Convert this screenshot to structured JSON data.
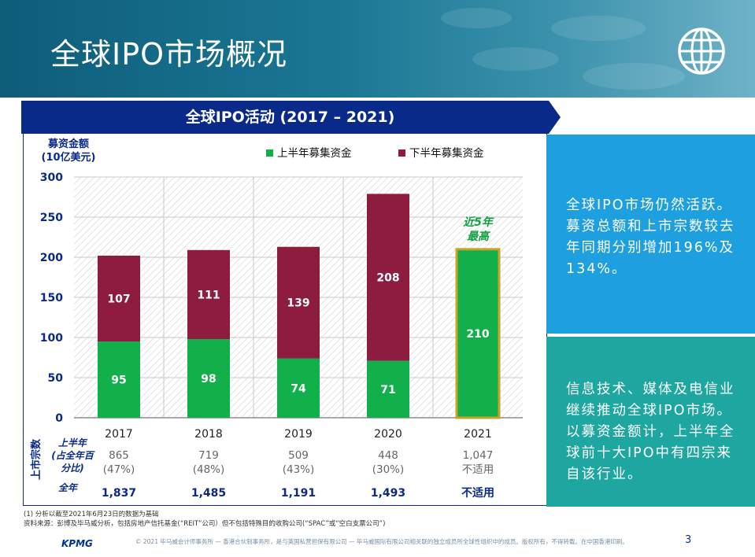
{
  "header": {
    "title": "全球IPO市场概况",
    "icon": "globe-icon"
  },
  "chart_data": {
    "type": "bar",
    "title": "全球IPO活动 (2017 – 2021)",
    "ylabel": [
      "募资金额",
      "(10亿美元)"
    ],
    "ylim": [
      0,
      300
    ],
    "yticks": [
      0,
      50,
      100,
      150,
      200,
      250,
      300
    ],
    "grid": true,
    "legend_position": "top-right",
    "categories": [
      "2017",
      "2018",
      "2019",
      "2020",
      "2021"
    ],
    "series": [
      {
        "name": "上半年募集资金",
        "color": "#12b04a",
        "values": [
          95,
          98,
          74,
          71,
          210
        ]
      },
      {
        "name": "下半年募集资金",
        "color": "#8e1c3e",
        "values": [
          107,
          111,
          139,
          208,
          null
        ]
      }
    ],
    "annotation": {
      "text": [
        "近5年",
        "最高"
      ],
      "category": "2021"
    }
  },
  "deals_table": {
    "side_label": "上市宗数",
    "rows": [
      {
        "label": [
          "上半年",
          "(占全年百",
          "分比)"
        ],
        "values": [
          "865",
          "719",
          "509",
          "448",
          "1,047"
        ],
        "subvalues": [
          "(47%)",
          "(48%)",
          "(43%)",
          "(30%)",
          "不适用"
        ]
      },
      {
        "label": [
          "全年"
        ],
        "values": [
          "1,837",
          "1,485",
          "1,191",
          "1,493",
          "不适用"
        ]
      }
    ]
  },
  "side_panels": [
    {
      "text": "全球IPO市场仍然活跃。募资总额和上市宗数较去年同期分别增加196%及134%。",
      "color": "#1e9fe0"
    },
    {
      "text": "信息技术、媒体及电信业继续推动全球IPO市场。以募资金额计，上半年全球前十大IPO中有四宗来自该行业。",
      "color": "#1ea6a1"
    }
  ],
  "footnotes": [
    "(1) 分析以截至2021年6月23日的数据为基础",
    "资料来源：彭博及毕马威分析，包括房地产信托基金(“REIT”公司）但不包括特殊目的收购公司(“SPAC”或“空白支票公司”)"
  ],
  "footer": {
    "logo": "KPMG",
    "copyright": "© 2021 毕马威会计师事务所 — 香港合伙制事务所，是与英国私营担保有限公司 — 毕马威国际有限公司相关联的独立成员所全球性组织中的成员。版权所有，不得转载。在中国香港印刷。",
    "page": "3"
  },
  "colors": {
    "brand": "#00338d",
    "first_half": "#12b04a",
    "second_half": "#8e1c3e",
    "highlight_border": "#c9a227"
  }
}
